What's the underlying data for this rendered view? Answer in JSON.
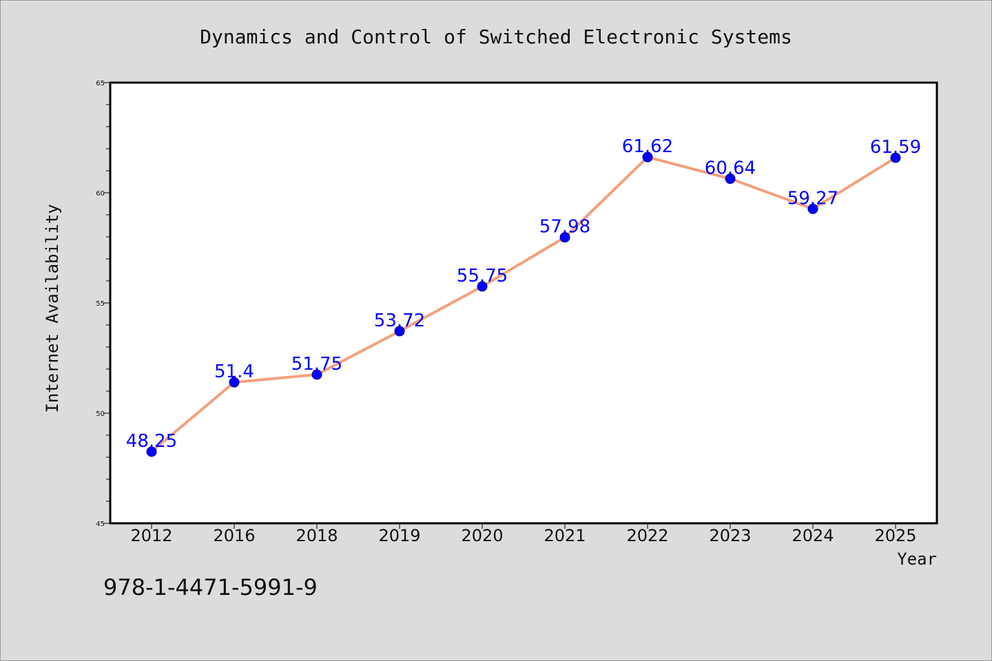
{
  "chart_data": {
    "type": "line",
    "title": "Dynamics and Control of Switched Electronic Systems",
    "xlabel": "Year",
    "ylabel": "Internet Availability",
    "categories": [
      "2012",
      "2016",
      "2018",
      "2019",
      "2020",
      "2021",
      "2022",
      "2023",
      "2024",
      "2025"
    ],
    "series": [
      {
        "values": [
          48.25,
          51.4,
          51.75,
          53.72,
          55.75,
          57.98,
          61.62,
          60.64,
          59.27,
          61.59
        ],
        "value_labels": [
          "48.25",
          "51.4",
          "51.75",
          "53.72",
          "55.75",
          "57.98",
          "61.62",
          "60.64",
          "59.27",
          "61.59"
        ],
        "line_color": "#f4a07c",
        "marker_color": "#0000ff"
      }
    ],
    "ylim": [
      45,
      65
    ],
    "yticks": [
      "45",
      "50",
      "55",
      "60",
      "65"
    ],
    "grid": false,
    "legend": "none"
  },
  "footer_text": "978-1-4471-5991-9",
  "colors": {
    "background": "#dcdcdc",
    "plot_background": "#ffffff",
    "label_color": "#0000ff"
  }
}
